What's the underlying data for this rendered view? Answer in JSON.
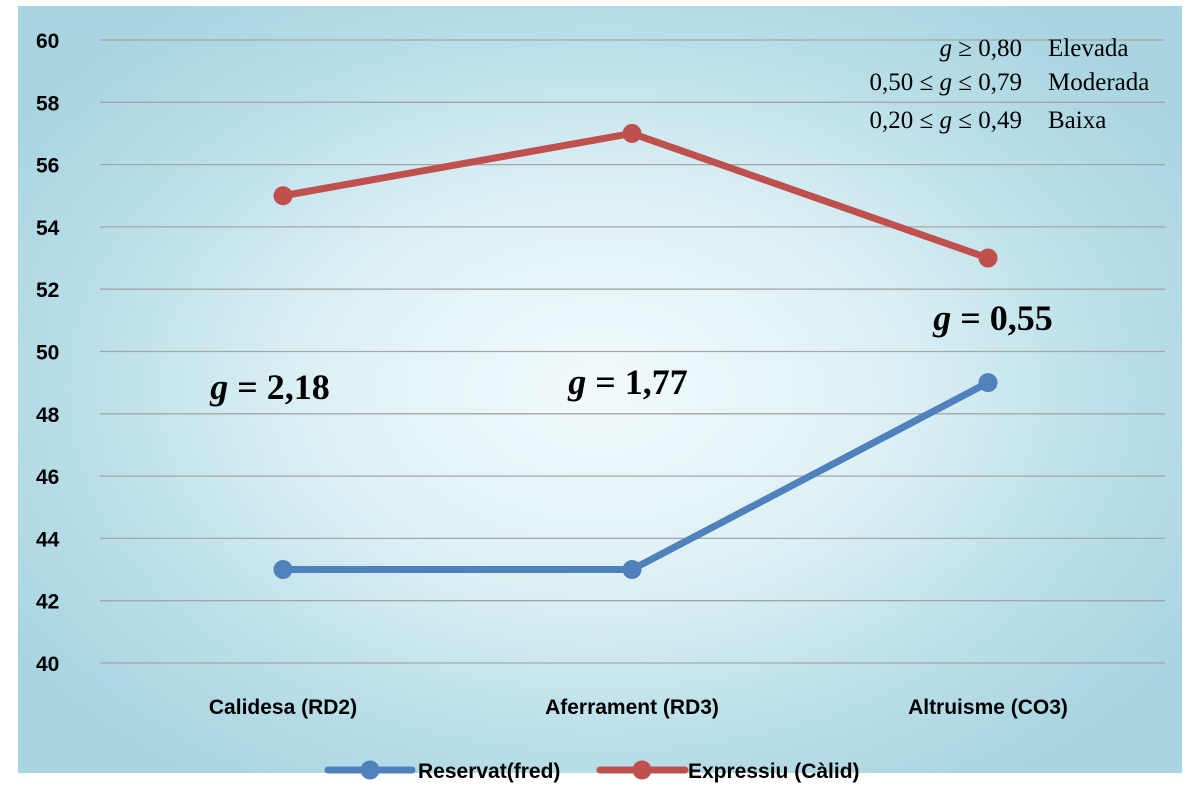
{
  "chart_data": {
    "type": "line",
    "categories": [
      "Calidesa (RD2)",
      "Aferrament  (RD3)",
      "Altruisme (CO3)"
    ],
    "series": [
      {
        "name": "Reservat(fred)",
        "values": [
          43,
          43,
          49
        ],
        "color": "#4f81bd"
      },
      {
        "name": "Expressiu (Càlid)",
        "values": [
          55,
          57,
          53
        ],
        "color": "#c0504d"
      }
    ],
    "ylim": [
      40,
      60
    ],
    "yticks": [
      "40",
      "42",
      "44",
      "46",
      "48",
      "50",
      "52",
      "54",
      "56",
      "58",
      "60"
    ],
    "grid": true,
    "legend_position": "bottom",
    "annotations": [
      {
        "symbol": "g",
        "text": " = 2,18"
      },
      {
        "symbol": "g",
        "text": " = 1,77"
      },
      {
        "symbol": "g",
        "text": " = 0,55"
      }
    ],
    "effect_size_key": [
      {
        "prefix": "",
        "symbol": "g",
        "range": " ≥ 0,80",
        "label": "Elevada"
      },
      {
        "prefix": "0,50 ≤ ",
        "symbol": "g",
        "range": " ≤ 0,79",
        "label": "Moderada"
      },
      {
        "prefix": "0,20 ≤ ",
        "symbol": "g",
        "range": " ≤ 0,49",
        "label": "Baixa"
      }
    ]
  }
}
